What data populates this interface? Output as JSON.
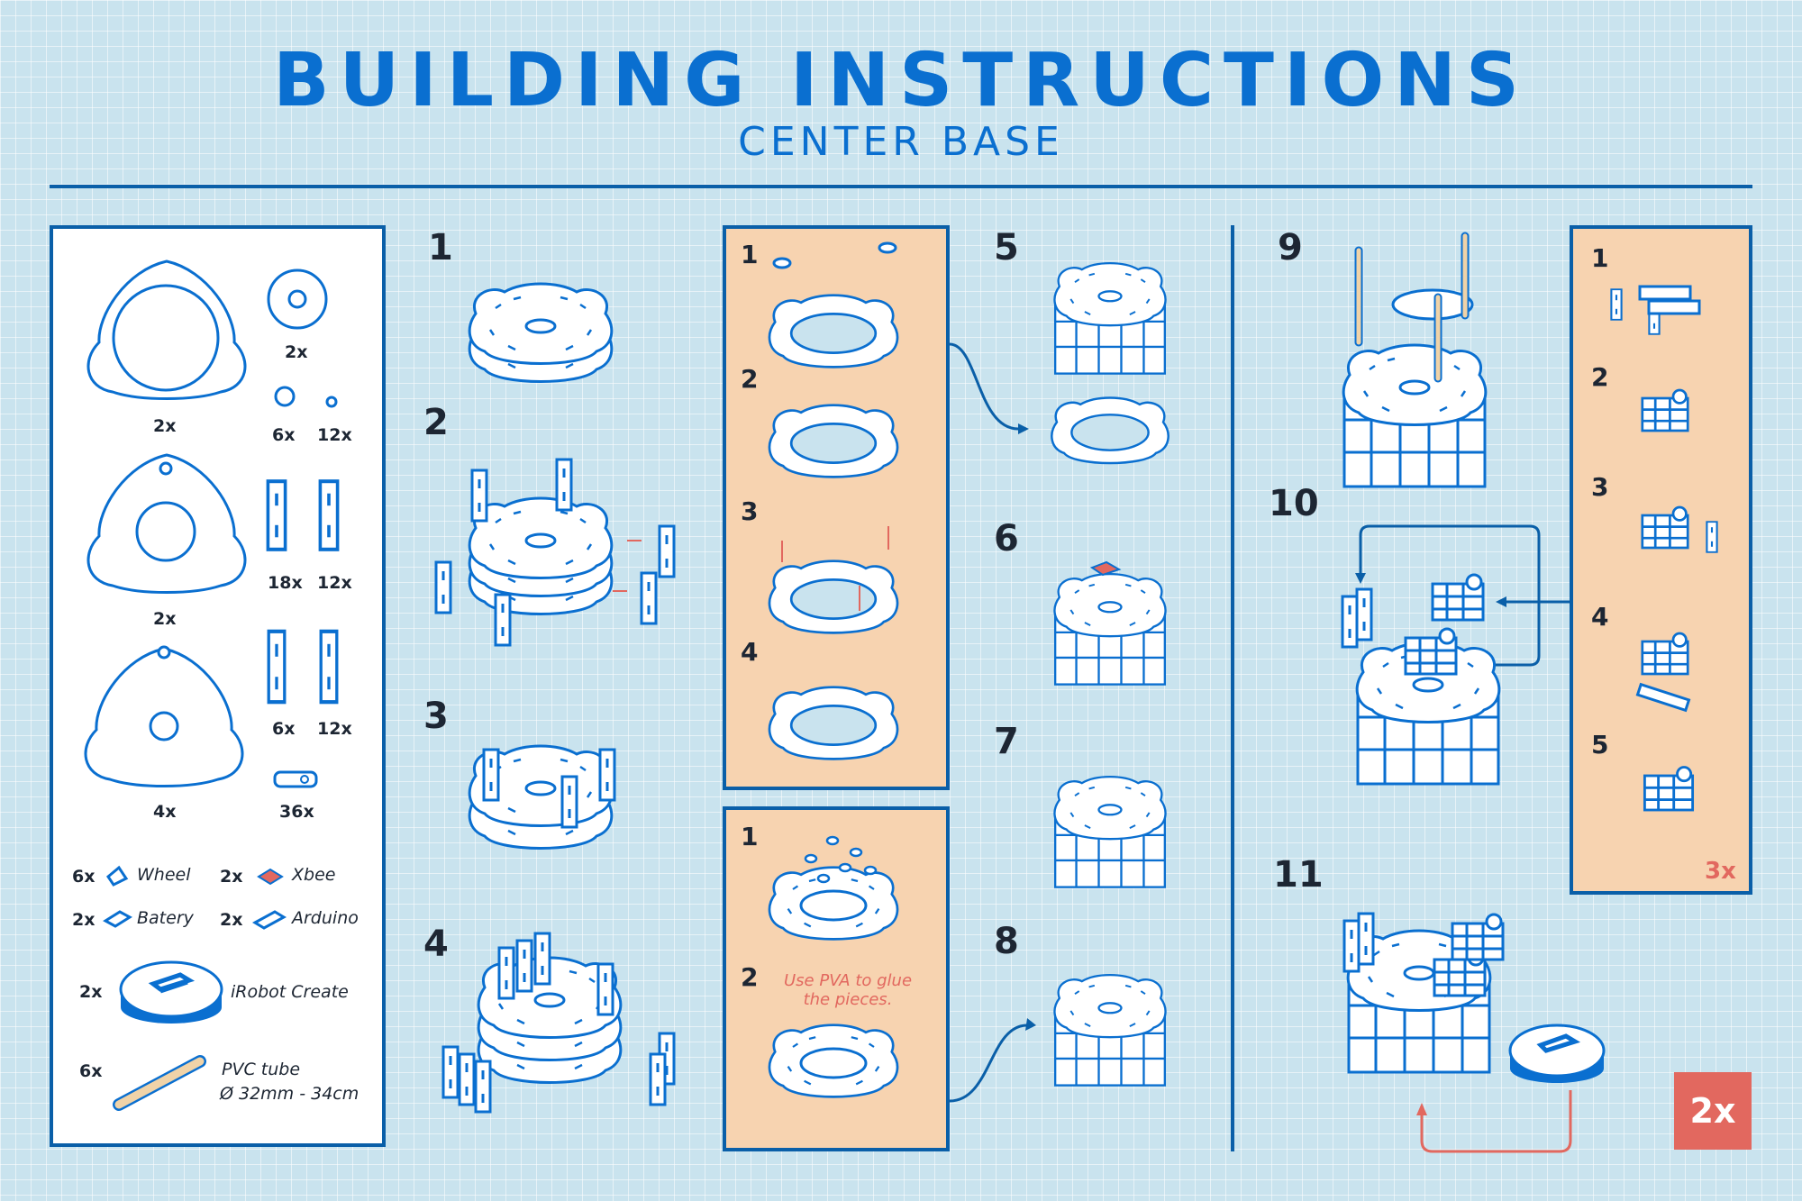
{
  "header": {
    "title": "BUILDING INSTRUCTIONS",
    "subtitle": "CENTER BASE"
  },
  "parts": {
    "plate_counts": [
      "2x",
      "2x",
      "4x"
    ],
    "small_counts": [
      "2x",
      "6x",
      "12x",
      "18x",
      "12x",
      "6x",
      "12x",
      "36x"
    ],
    "components": [
      {
        "qty": "6x",
        "name": "Wheel"
      },
      {
        "qty": "2x",
        "name": "Xbee"
      },
      {
        "qty": "2x",
        "name": "Batery"
      },
      {
        "qty": "2x",
        "name": "Arduino"
      },
      {
        "qty": "2x",
        "name": "iRobot Create"
      },
      {
        "qty": "6x",
        "name": "PVC tube",
        "spec": "Ø 32mm - 34cm"
      }
    ]
  },
  "steps": [
    "1",
    "2",
    "3",
    "4",
    "5",
    "6",
    "7",
    "8",
    "9",
    "10",
    "11"
  ],
  "substeps_a": [
    "1",
    "2",
    "3",
    "4"
  ],
  "substeps_b": [
    "1",
    "2"
  ],
  "substeps_c": [
    "1",
    "2",
    "3",
    "4",
    "5"
  ],
  "note_b": "Use PVA to glue the pieces.",
  "multiplier_c": "3x",
  "badge": "2x",
  "colors": {
    "blue": "#0a6fd0",
    "grid_bg": "#c9e3ee",
    "orange_panel": "#f7d3b0",
    "accent_red": "#e2685f",
    "wood": "#f0d3a8"
  }
}
